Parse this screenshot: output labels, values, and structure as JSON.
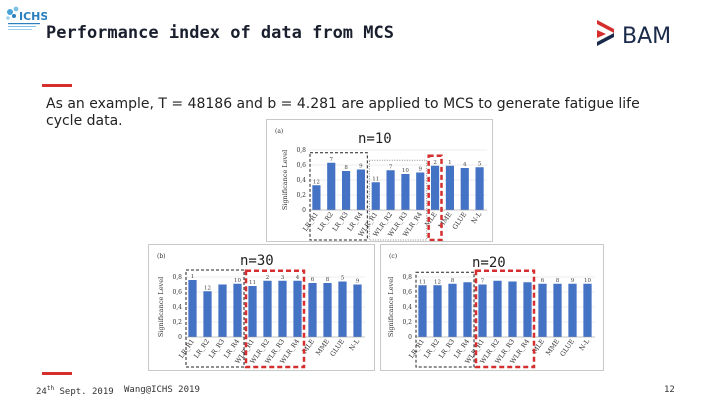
{
  "header": {
    "title": "Performance index of data from MCS",
    "logo_left_text": "ICHS",
    "logo_right_text": "BAM"
  },
  "body": {
    "text_before": "As an example, T = 48186 and b = 4.281 are applied to ",
    "text_mcs": "MCS",
    "text_after": " to generate fatigue life cycle data."
  },
  "footer": {
    "date_day": "24",
    "date_suffix": "th",
    "date_rest": " Sept. 2019",
    "author": "Wang@ICHS 2019",
    "page": "12"
  },
  "colors": {
    "bar": "#4472c4",
    "accent": "#d42e2e",
    "grid": "#d9d9d9"
  },
  "chart_data": [
    {
      "type": "bar",
      "panel": "(a)",
      "annotation": "n=10",
      "ylabel": "Significance Level",
      "ylim": [
        0,
        0.8
      ],
      "yticks": [
        "0",
        "0,2",
        "0,4",
        "0,6",
        "0,8"
      ],
      "categories": [
        "LR_R1",
        "LR_R2",
        "LR_R3",
        "LR_R4",
        "WLR_R1",
        "WLR_R2",
        "WLR_R3",
        "WLR_R4",
        "MLE",
        "MME",
        "GLUE",
        "N-L"
      ],
      "values": [
        0.33,
        0.63,
        0.52,
        0.54,
        0.37,
        0.53,
        0.48,
        0.5,
        0.59,
        0.59,
        0.56,
        0.57
      ],
      "data_labels": [
        "12",
        "7",
        "8",
        "9",
        "11",
        "7",
        "10",
        "9",
        "2",
        "1",
        "4",
        "5"
      ],
      "grid": true
    },
    {
      "type": "bar",
      "panel": "(b)",
      "annotation": "n=30",
      "ylabel": "Significance Level",
      "ylim": [
        0,
        0.8
      ],
      "yticks": [
        "0",
        "0,2",
        "0,4",
        "0,6",
        "0,8"
      ],
      "categories": [
        "LR_R1",
        "LR_R2",
        "LR_R3",
        "LR_R4",
        "WLR_R1",
        "WLR_R2",
        "WLR_R3",
        "WLR_R4",
        "MLE",
        "MME",
        "GLUE",
        "N-L"
      ],
      "values": [
        0.76,
        0.61,
        0.7,
        0.71,
        0.68,
        0.75,
        0.75,
        0.75,
        0.72,
        0.72,
        0.74,
        0.7
      ],
      "data_labels": [
        "1",
        "12",
        "",
        "10",
        "11",
        "2",
        "3",
        "4",
        "6",
        "8",
        "5",
        "9"
      ],
      "grid": true
    },
    {
      "type": "bar",
      "panel": "(c)",
      "annotation": "n=20",
      "ylabel": "Significance Level",
      "ylim": [
        0,
        0.8
      ],
      "yticks": [
        "0",
        "0,2",
        "0,4",
        "0,6",
        "0,8"
      ],
      "categories": [
        "LR_R1",
        "LR_R2",
        "LR_R3",
        "LR_R4",
        "WLR_R1",
        "WLR_R2",
        "WLR_R3",
        "WLR_R4",
        "MLE",
        "MME",
        "GLUE",
        "N-L"
      ],
      "values": [
        0.69,
        0.69,
        0.71,
        0.73,
        0.7,
        0.75,
        0.74,
        0.73,
        0.71,
        0.71,
        0.71,
        0.71
      ],
      "data_labels": [
        "11",
        "12",
        "8",
        "",
        "7",
        "",
        "",
        "",
        "6",
        "8",
        "9",
        "10"
      ],
      "grid": true
    }
  ]
}
